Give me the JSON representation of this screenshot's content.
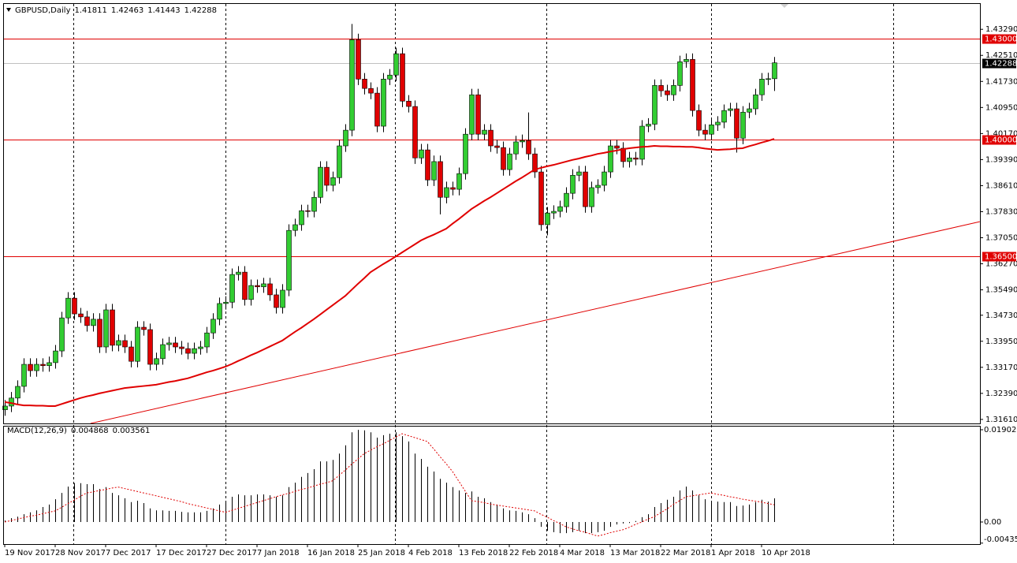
{
  "chart_data": [
    {
      "type": "candlestick",
      "title": "GBPUSD,Daily",
      "up_color": "#32cd32",
      "down_color": "#e00000",
      "wick_color": "#000000",
      "ylim": [
        1.3149,
        1.4405
      ],
      "yticks": [
        {
          "value": 1.4329,
          "label": "1.43290"
        },
        {
          "value": 1.4251,
          "label": "1.42510"
        },
        {
          "value": 1.4173,
          "label": "1.41730"
        },
        {
          "value": 1.4095,
          "label": "1.40950"
        },
        {
          "value": 1.4017,
          "label": "1.40170"
        },
        {
          "value": 1.3939,
          "label": "1.39390"
        },
        {
          "value": 1.3861,
          "label": "1.38610"
        },
        {
          "value": 1.3783,
          "label": "1.37830"
        },
        {
          "value": 1.3705,
          "label": "1.37050"
        },
        {
          "value": 1.3627,
          "label": "1.36270"
        },
        {
          "value": 1.3549,
          "label": "1.35490"
        },
        {
          "value": 1.3473,
          "label": "1.34730"
        },
        {
          "value": 1.3395,
          "label": "1.33950"
        },
        {
          "value": 1.3317,
          "label": "1.33170"
        },
        {
          "value": 1.3239,
          "label": "1.32390"
        },
        {
          "value": 1.3161,
          "label": "1.31610"
        }
      ],
      "categories": [
        "19 Nov 2017",
        null,
        null,
        null,
        null,
        null,
        null,
        null,
        "28 Nov 2017",
        null,
        null,
        null,
        null,
        null,
        null,
        null,
        "7 Dec 2017",
        null,
        null,
        null,
        null,
        null,
        null,
        null,
        "17 Dec 2017",
        null,
        null,
        null,
        null,
        null,
        null,
        null,
        "27 Dec 2017",
        null,
        null,
        null,
        null,
        null,
        null,
        null,
        "7 Jan 2018",
        null,
        null,
        null,
        null,
        null,
        null,
        null,
        "16 Jan 2018",
        null,
        null,
        null,
        null,
        null,
        null,
        null,
        "25 Jan 2018",
        null,
        null,
        null,
        null,
        null,
        null,
        null,
        "4 Feb 2018",
        null,
        null,
        null,
        null,
        null,
        null,
        null,
        "13 Feb 2018",
        null,
        null,
        null,
        null,
        null,
        null,
        null,
        "22 Feb 2018",
        null,
        null,
        null,
        null,
        null,
        null,
        null,
        "4 Mar 2018",
        null,
        null,
        null,
        null,
        null,
        null,
        null,
        "13 Mar 2018",
        null,
        null,
        null,
        null,
        null,
        null,
        null,
        "22 Mar 2018",
        null,
        null,
        null,
        null,
        null,
        null,
        null,
        "1 Apr 2018",
        null,
        null,
        null,
        null,
        null,
        null,
        null,
        "10 Apr 2018",
        null,
        null
      ],
      "open": [
        1.319,
        1.3201,
        1.3225,
        1.326,
        1.3326,
        1.3307,
        1.3326,
        1.3322,
        1.3331,
        1.3366,
        1.3465,
        1.3524,
        1.3477,
        1.3468,
        1.3442,
        1.3461,
        1.3378,
        1.3489,
        1.3383,
        1.3397,
        1.3378,
        1.3335,
        1.3437,
        1.343,
        1.3326,
        1.3343,
        1.3385,
        1.339,
        1.3378,
        1.3373,
        1.3359,
        1.3373,
        1.3378,
        1.342,
        1.3461,
        1.3508,
        1.3512,
        1.3595,
        1.3602,
        1.352,
        1.3562,
        1.3558,
        1.3567,
        1.3534,
        1.3496,
        1.3548,
        1.3727,
        1.3744,
        1.3786,
        1.3784,
        1.3826,
        1.3916,
        1.3862,
        1.3885,
        1.398,
        1.4027,
        1.4298,
        1.418,
        1.4152,
        1.4138,
        1.4039,
        1.418,
        1.4192,
        1.4256,
        1.4114,
        1.4098,
        1.3944,
        1.3968,
        1.3878,
        1.3933,
        1.3826,
        1.3855,
        1.385,
        1.3897,
        1.4015,
        1.4133,
        1.4015,
        1.4027,
        1.398,
        1.3975,
        1.3909,
        1.3956,
        1.3992,
        1.3996,
        1.3956,
        1.3902,
        1.3744,
        1.3779,
        1.3784,
        1.3798,
        1.3838,
        1.3892,
        1.3902,
        1.3798,
        1.3855,
        1.3862,
        1.3902,
        1.398,
        1.3973,
        1.3933,
        1.3944,
        1.394,
        1.4039,
        1.4045,
        1.4161,
        1.4145,
        1.4133,
        1.4161,
        1.4232,
        1.4239,
        1.4086,
        1.4027,
        1.4015,
        1.4043,
        1.4051,
        1.4086,
        1.4091,
        1.4003,
        1.4081,
        1.4091,
        1.4133,
        1.418,
        1.41811
      ],
      "high": [
        1.3219,
        1.3243,
        1.3278,
        1.3344,
        1.3344,
        1.3344,
        1.3344,
        1.3349,
        1.3384,
        1.3483,
        1.3542,
        1.3542,
        1.3495,
        1.3486,
        1.3479,
        1.3479,
        1.3507,
        1.3507,
        1.3415,
        1.3415,
        1.3396,
        1.3455,
        1.3455,
        1.3448,
        1.3361,
        1.3403,
        1.3408,
        1.3408,
        1.3396,
        1.3391,
        1.3391,
        1.3396,
        1.3438,
        1.3479,
        1.3526,
        1.353,
        1.3613,
        1.362,
        1.362,
        1.358,
        1.358,
        1.3585,
        1.3585,
        1.3552,
        1.3566,
        1.3745,
        1.3762,
        1.3804,
        1.3804,
        1.3844,
        1.3934,
        1.3934,
        1.3903,
        1.3998,
        1.4045,
        1.4345,
        1.4316,
        1.4198,
        1.417,
        1.4156,
        1.4198,
        1.421,
        1.4274,
        1.4274,
        1.4132,
        1.4116,
        1.3986,
        1.3986,
        1.3951,
        1.3951,
        1.3873,
        1.3873,
        1.3915,
        1.4033,
        1.4151,
        1.4151,
        1.4045,
        1.4045,
        1.3998,
        1.3993,
        1.3974,
        1.401,
        1.4014,
        1.408,
        1.3974,
        1.392,
        1.3797,
        1.3802,
        1.3816,
        1.3856,
        1.391,
        1.392,
        1.392,
        1.3873,
        1.388,
        1.392,
        1.3998,
        1.3998,
        1.3991,
        1.3962,
        1.3962,
        1.4057,
        1.4063,
        1.4179,
        1.4179,
        1.4163,
        1.4179,
        1.425,
        1.4257,
        1.4257,
        1.4104,
        1.4045,
        1.4061,
        1.4069,
        1.4104,
        1.4109,
        1.4109,
        1.4099,
        1.4109,
        1.4151,
        1.4198,
        1.4199,
        1.42463
      ],
      "low": [
        1.3172,
        1.3183,
        1.3207,
        1.3242,
        1.3289,
        1.3289,
        1.3304,
        1.3304,
        1.3313,
        1.3348,
        1.3447,
        1.3459,
        1.345,
        1.3424,
        1.3424,
        1.336,
        1.336,
        1.3365,
        1.3365,
        1.336,
        1.3317,
        1.3317,
        1.3412,
        1.3308,
        1.3308,
        1.3325,
        1.3367,
        1.336,
        1.3355,
        1.3341,
        1.3341,
        1.3355,
        1.336,
        1.3402,
        1.3443,
        1.349,
        1.3494,
        1.3577,
        1.3502,
        1.3502,
        1.354,
        1.354,
        1.3516,
        1.3478,
        1.3478,
        1.353,
        1.3709,
        1.3726,
        1.3766,
        1.3766,
        1.3808,
        1.3844,
        1.3844,
        1.3867,
        1.3962,
        1.4009,
        1.4162,
        1.4134,
        1.412,
        1.4021,
        1.4021,
        1.4162,
        1.4174,
        1.4096,
        1.408,
        1.3926,
        1.3926,
        1.386,
        1.386,
        1.3775,
        1.3808,
        1.3832,
        1.3832,
        1.3879,
        1.3997,
        1.3997,
        1.3997,
        1.3962,
        1.3957,
        1.3891,
        1.3891,
        1.3938,
        1.3974,
        1.3938,
        1.3884,
        1.3726,
        1.3712,
        1.3761,
        1.3766,
        1.378,
        1.382,
        1.3874,
        1.378,
        1.378,
        1.3837,
        1.3844,
        1.3884,
        1.3955,
        1.3915,
        1.3915,
        1.3922,
        1.3922,
        1.4021,
        1.4027,
        1.4127,
        1.4115,
        1.4115,
        1.4143,
        1.4214,
        1.4068,
        1.4009,
        1.3997,
        1.3997,
        1.4025,
        1.4033,
        1.4068,
        1.396,
        1.3985,
        1.4063,
        1.4073,
        1.4115,
        1.4162,
        1.41443
      ],
      "close": [
        1.3201,
        1.3225,
        1.326,
        1.3326,
        1.3307,
        1.3326,
        1.3322,
        1.3331,
        1.3366,
        1.3465,
        1.3524,
        1.3477,
        1.3468,
        1.3442,
        1.3461,
        1.3378,
        1.3489,
        1.3383,
        1.3397,
        1.3378,
        1.3335,
        1.3437,
        1.343,
        1.3326,
        1.3343,
        1.3385,
        1.339,
        1.3378,
        1.3373,
        1.3359,
        1.3373,
        1.3378,
        1.342,
        1.3461,
        1.3508,
        1.3512,
        1.3595,
        1.3602,
        1.352,
        1.3562,
        1.3558,
        1.3567,
        1.3534,
        1.3496,
        1.3548,
        1.3727,
        1.3744,
        1.3786,
        1.3784,
        1.3826,
        1.3916,
        1.3862,
        1.3885,
        1.398,
        1.4027,
        1.4298,
        1.418,
        1.4152,
        1.4138,
        1.4039,
        1.418,
        1.4192,
        1.4256,
        1.4114,
        1.4098,
        1.3944,
        1.3968,
        1.3878,
        1.3933,
        1.3826,
        1.3855,
        1.385,
        1.3897,
        1.4015,
        1.4133,
        1.4015,
        1.4027,
        1.398,
        1.3975,
        1.3909,
        1.3956,
        1.3992,
        1.3996,
        1.3956,
        1.3902,
        1.3744,
        1.3779,
        1.3784,
        1.3798,
        1.3838,
        1.3892,
        1.3902,
        1.3798,
        1.3855,
        1.3862,
        1.3902,
        1.398,
        1.3973,
        1.3933,
        1.3944,
        1.394,
        1.4039,
        1.4045,
        1.4161,
        1.4145,
        1.4133,
        1.4161,
        1.4232,
        1.4239,
        1.4086,
        1.4027,
        1.4015,
        1.4043,
        1.4051,
        1.4086,
        1.4091,
        1.4003,
        1.4081,
        1.4091,
        1.4133,
        1.418,
        1.41811,
        1.42288
      ],
      "ma_color": "#e00000",
      "ma": [
        1.3213,
        1.321,
        1.3206,
        1.3203,
        1.3203,
        1.3202,
        1.3202,
        1.3201,
        1.3201,
        1.3207,
        1.3213,
        1.3219,
        1.3225,
        1.323,
        1.3234,
        1.3239,
        1.3243,
        1.3247,
        1.3251,
        1.3255,
        1.3257,
        1.3259,
        1.3261,
        1.3263,
        1.3265,
        1.3269,
        1.3273,
        1.3276,
        1.328,
        1.3284,
        1.329,
        1.3296,
        1.3302,
        1.3307,
        1.3313,
        1.3319,
        1.3327,
        1.3336,
        1.3344,
        1.3353,
        1.3361,
        1.337,
        1.3379,
        1.3388,
        1.3397,
        1.341,
        1.3423,
        1.3435,
        1.3448,
        1.3461,
        1.3475,
        1.3489,
        1.3503,
        1.3517,
        1.3531,
        1.3549,
        1.3567,
        1.3584,
        1.3602,
        1.3614,
        1.3626,
        1.3637,
        1.3649,
        1.3661,
        1.3673,
        1.3685,
        1.3697,
        1.3706,
        1.3714,
        1.3723,
        1.3732,
        1.3747,
        1.3761,
        1.3776,
        1.3791,
        1.3803,
        1.3815,
        1.3826,
        1.3838,
        1.385,
        1.3862,
        1.3874,
        1.3885,
        1.3897,
        1.3909,
        1.3914,
        1.3919,
        1.3923,
        1.3928,
        1.3933,
        1.3938,
        1.3942,
        1.3947,
        1.3951,
        1.3956,
        1.3959,
        1.3963,
        1.3966,
        1.397,
        1.3973,
        1.3975,
        1.3977,
        1.3978,
        1.398,
        1.3979,
        1.3979,
        1.3978,
        1.3978,
        1.3977,
        1.3977,
        1.3975,
        1.3972,
        1.397,
        1.3968,
        1.3969,
        1.397,
        1.3972,
        1.3973,
        1.3979,
        1.3984,
        1.399,
        1.3995,
        1.4001
      ],
      "levels": [
        {
          "value": 1.43,
          "label": "1.43000"
        },
        {
          "value": 1.4,
          "label": "1.40000"
        },
        {
          "value": 1.365,
          "label": "1.36500"
        }
      ],
      "level_color": "#e00000",
      "trendline": {
        "x": [
          13.6,
          154.6
        ],
        "y": [
          1.3149,
          1.3753
        ]
      },
      "current_color": "#c0c0c0"
    },
    {
      "type": "macd",
      "title": "MACD(12,26,9)",
      "ylim": [
        -0.00455,
        0.01967
      ],
      "yticks": [
        0.019021,
        {
          "value": 0,
          "label": "0.00"
        },
        -0.004351
      ],
      "histogram_color": "#000000",
      "signal_color": "#e00000",
      "histogram": [
        0.0003,
        0.0008,
        0.0011,
        0.0016,
        0.002,
        0.0024,
        0.0031,
        0.0036,
        0.0047,
        0.006,
        0.0073,
        0.008,
        0.008,
        0.0078,
        0.0078,
        0.0068,
        0.0072,
        0.006,
        0.0055,
        0.0049,
        0.0041,
        0.0044,
        0.0039,
        0.0028,
        0.0024,
        0.0024,
        0.0023,
        0.0023,
        0.0021,
        0.002,
        0.002,
        0.002,
        0.0023,
        0.0028,
        0.0036,
        0.0042,
        0.0052,
        0.0057,
        0.0055,
        0.0055,
        0.0057,
        0.0057,
        0.0055,
        0.0052,
        0.0055,
        0.0072,
        0.0081,
        0.0093,
        0.0101,
        0.0109,
        0.0125,
        0.0125,
        0.0128,
        0.0141,
        0.0158,
        0.0185,
        0.019,
        0.0189,
        0.0185,
        0.0174,
        0.0179,
        0.0182,
        0.0185,
        0.0177,
        0.0166,
        0.0141,
        0.013,
        0.0114,
        0.0104,
        0.0089,
        0.0081,
        0.0072,
        0.0065,
        0.006,
        0.0063,
        0.0052,
        0.0049,
        0.0041,
        0.0036,
        0.0028,
        0.0024,
        0.0023,
        0.002,
        0.0016,
        0.0008,
        -0.001,
        -0.0018,
        -0.0021,
        -0.0023,
        -0.0023,
        -0.0021,
        -0.0018,
        -0.0023,
        -0.0023,
        -0.0021,
        -0.0018,
        -0.001,
        -0.0005,
        -0.0003,
        -0.0002,
        0.0002,
        0.001,
        0.0016,
        0.0031,
        0.0039,
        0.0046,
        0.0052,
        0.0065,
        0.0073,
        0.0065,
        0.0055,
        0.0047,
        0.0044,
        0.0042,
        0.0041,
        0.0041,
        0.0033,
        0.0034,
        0.0036,
        0.0041,
        0.0046,
        0.0042,
        0.004868
      ],
      "signal": [
        0.0,
        0.0003,
        0.0006,
        0.0009,
        0.0012,
        0.0014,
        0.0017,
        0.002,
        0.0023,
        0.003,
        0.0038,
        0.0045,
        0.0053,
        0.006,
        0.0062,
        0.0065,
        0.0067,
        0.007,
        0.0072,
        0.0069,
        0.0066,
        0.0063,
        0.006,
        0.0057,
        0.0054,
        0.0051,
        0.0048,
        0.0045,
        0.0042,
        0.0038,
        0.0035,
        0.0032,
        0.0029,
        0.0026,
        0.0023,
        0.002,
        0.0024,
        0.0028,
        0.0032,
        0.0036,
        0.004,
        0.0044,
        0.0048,
        0.0052,
        0.0056,
        0.0059,
        0.0063,
        0.0067,
        0.007,
        0.0074,
        0.0078,
        0.0081,
        0.0085,
        0.0096,
        0.0107,
        0.0119,
        0.013,
        0.0141,
        0.0148,
        0.0155,
        0.0161,
        0.0168,
        0.0175,
        0.0182,
        0.0178,
        0.0174,
        0.017,
        0.0166,
        0.0151,
        0.0135,
        0.012,
        0.0104,
        0.0084,
        0.0064,
        0.0044,
        0.0042,
        0.004,
        0.0037,
        0.0035,
        0.0033,
        0.0031,
        0.0029,
        0.0027,
        0.0025,
        0.0023,
        0.0016,
        0.001,
        0.0003,
        -0.0003,
        -0.001,
        -0.0014,
        -0.0018,
        -0.0021,
        -0.0025,
        -0.0029,
        -0.0026,
        -0.0022,
        -0.0019,
        -0.0016,
        -0.0011,
        -0.0005,
        0.0,
        0.0006,
        0.0011,
        0.0019,
        0.0027,
        0.0036,
        0.0044,
        0.0052,
        0.0054,
        0.0056,
        0.0058,
        0.006,
        0.0057,
        0.0055,
        0.0052,
        0.005,
        0.0047,
        0.0045,
        0.0043,
        0.0041,
        0.0038,
        0.003561
      ]
    }
  ]
}
